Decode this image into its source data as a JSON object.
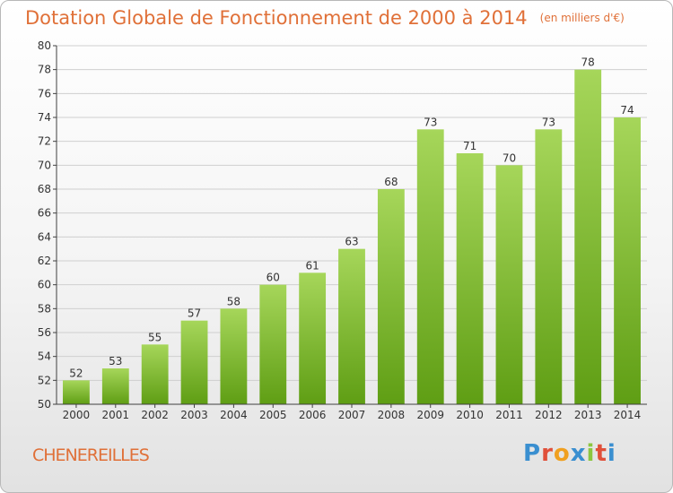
{
  "title": "Dotation Globale de Fonctionnement de 2000 à 2014",
  "unit_note": "(en milliers d'€)",
  "town": "CHENEREILLES",
  "logo_text": "Proxiti",
  "colors": {
    "title": "#e07038",
    "bar_light": "#a6d65a",
    "bar_dark": "#5f9e14",
    "axis": "#404040",
    "grid": "#cfcfcf"
  },
  "chart_data": {
    "type": "bar",
    "title": "Dotation Globale de Fonctionnement de 2000 à 2014",
    "subtitle": "(en milliers d'€)",
    "categories": [
      "2000",
      "2001",
      "2002",
      "2003",
      "2004",
      "2005",
      "2006",
      "2007",
      "2008",
      "2009",
      "2010",
      "2011",
      "2012",
      "2013",
      "2014"
    ],
    "values": [
      52,
      53,
      55,
      57,
      58,
      60,
      61,
      63,
      68,
      73,
      71,
      70,
      73,
      78,
      74
    ],
    "ylim": [
      50,
      80
    ],
    "yticks": [
      50,
      52,
      54,
      56,
      58,
      60,
      62,
      64,
      66,
      68,
      70,
      72,
      74,
      76,
      78,
      80
    ],
    "xlabel": "",
    "ylabel": "",
    "grid": true,
    "data_labels": true
  }
}
